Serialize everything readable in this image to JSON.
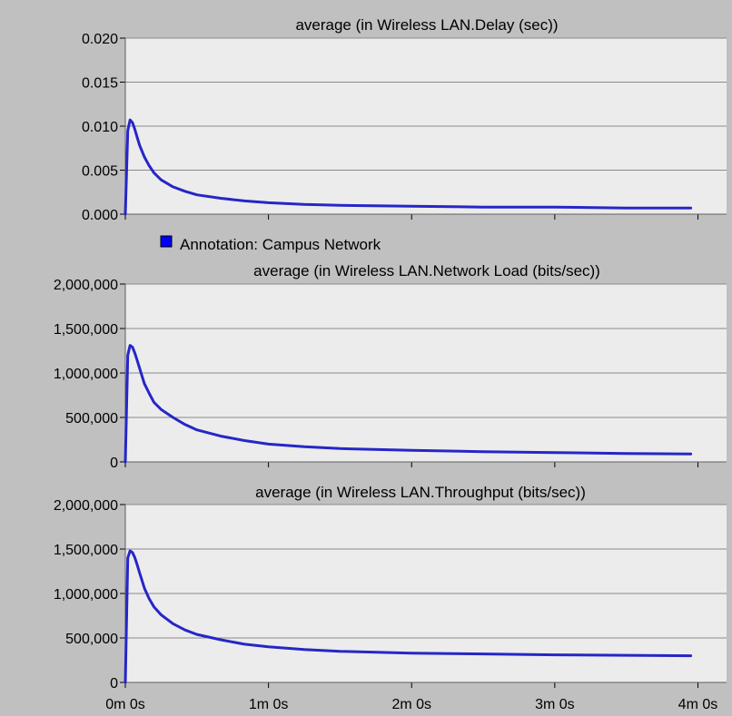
{
  "legend": {
    "label": "Annotation: Campus Network",
    "color": "#0000ff"
  },
  "colors": {
    "background": "#c0c0c0",
    "plot_background": "#ececec",
    "gridline": "#8a8a8a",
    "series_line": "#2626c8"
  },
  "chart_data": [
    {
      "type": "line",
      "title": "average (in Wireless LAN.Delay (sec))",
      "xlabel": "",
      "ylabel": "",
      "xlim": [
        0,
        4.2
      ],
      "ylim": [
        0,
        0.02
      ],
      "y_ticks": [
        0,
        0.005,
        0.01,
        0.015,
        0.02
      ],
      "y_tick_labels": [
        "0.000",
        "0.005",
        "0.010",
        "0.015",
        "0.020"
      ],
      "x_ticks": [
        0,
        1,
        2,
        3,
        4
      ],
      "x_tick_labels": [
        "0m 0s",
        "1m 0s",
        "2m 0s",
        "3m 0s",
        "4m 0s"
      ],
      "x_tick_labels_visible": false,
      "grid": true,
      "series": [
        {
          "x": [
            0,
            0.017,
            0.033,
            0.05,
            0.067,
            0.083,
            0.1,
            0.133,
            0.167,
            0.2,
            0.25,
            0.333,
            0.417,
            0.5,
            0.667,
            0.833,
            1,
            1.25,
            1.5,
            2,
            2.5,
            3,
            3.5,
            3.95
          ],
          "y": [
            0,
            0.0095,
            0.0107,
            0.0104,
            0.0096,
            0.0087,
            0.0078,
            0.0065,
            0.0055,
            0.0047,
            0.0039,
            0.0031,
            0.0026,
            0.0022,
            0.0018,
            0.0015,
            0.0013,
            0.0011,
            0.001,
            0.0009,
            0.0008,
            0.0008,
            0.0007,
            0.0007
          ]
        }
      ]
    },
    {
      "type": "line",
      "title": "average (in Wireless LAN.Network Load (bits/sec))",
      "xlabel": "",
      "ylabel": "",
      "xlim": [
        0,
        4.2
      ],
      "ylim": [
        0,
        2000000
      ],
      "y_ticks": [
        0,
        500000,
        1000000,
        1500000,
        2000000
      ],
      "y_tick_labels": [
        "0",
        "500,000",
        "1,000,000",
        "1,500,000",
        "2,000,000"
      ],
      "x_ticks": [
        0,
        1,
        2,
        3,
        4
      ],
      "x_tick_labels": [
        "0m 0s",
        "1m 0s",
        "2m 0s",
        "3m 0s",
        "4m 0s"
      ],
      "x_tick_labels_visible": false,
      "grid": true,
      "series": [
        {
          "x": [
            0,
            0.017,
            0.033,
            0.05,
            0.067,
            0.083,
            0.1,
            0.133,
            0.167,
            0.2,
            0.25,
            0.333,
            0.417,
            0.5,
            0.667,
            0.833,
            1,
            1.25,
            1.5,
            2,
            2.5,
            3,
            3.5,
            3.95
          ],
          "y": [
            0,
            1200000,
            1310000,
            1290000,
            1220000,
            1140000,
            1050000,
            880000,
            770000,
            670000,
            590000,
            500000,
            420000,
            360000,
            290000,
            240000,
            200000,
            170000,
            150000,
            130000,
            115000,
            105000,
            95000,
            90000
          ]
        }
      ]
    },
    {
      "type": "line",
      "title": "average (in Wireless LAN.Throughput (bits/sec))",
      "xlabel": "",
      "ylabel": "",
      "xlim": [
        0,
        4.2
      ],
      "ylim": [
        0,
        2000000
      ],
      "y_ticks": [
        0,
        500000,
        1000000,
        1500000,
        2000000
      ],
      "y_tick_labels": [
        "0",
        "500,000",
        "1,000,000",
        "1,500,000",
        "2,000,000"
      ],
      "x_ticks": [
        0,
        1,
        2,
        3,
        4
      ],
      "x_tick_labels": [
        "0m 0s",
        "1m 0s",
        "2m 0s",
        "3m 0s",
        "4m 0s"
      ],
      "x_tick_labels_visible": true,
      "grid": true,
      "series": [
        {
          "x": [
            0,
            0.017,
            0.033,
            0.05,
            0.067,
            0.083,
            0.1,
            0.133,
            0.167,
            0.2,
            0.25,
            0.333,
            0.417,
            0.5,
            0.667,
            0.833,
            1,
            1.25,
            1.5,
            2,
            2.5,
            3,
            3.5,
            3.95
          ],
          "y": [
            0,
            1400000,
            1480000,
            1460000,
            1400000,
            1320000,
            1230000,
            1060000,
            940000,
            850000,
            760000,
            660000,
            590000,
            540000,
            480000,
            430000,
            400000,
            370000,
            350000,
            330000,
            320000,
            310000,
            305000,
            300000
          ]
        }
      ]
    }
  ]
}
